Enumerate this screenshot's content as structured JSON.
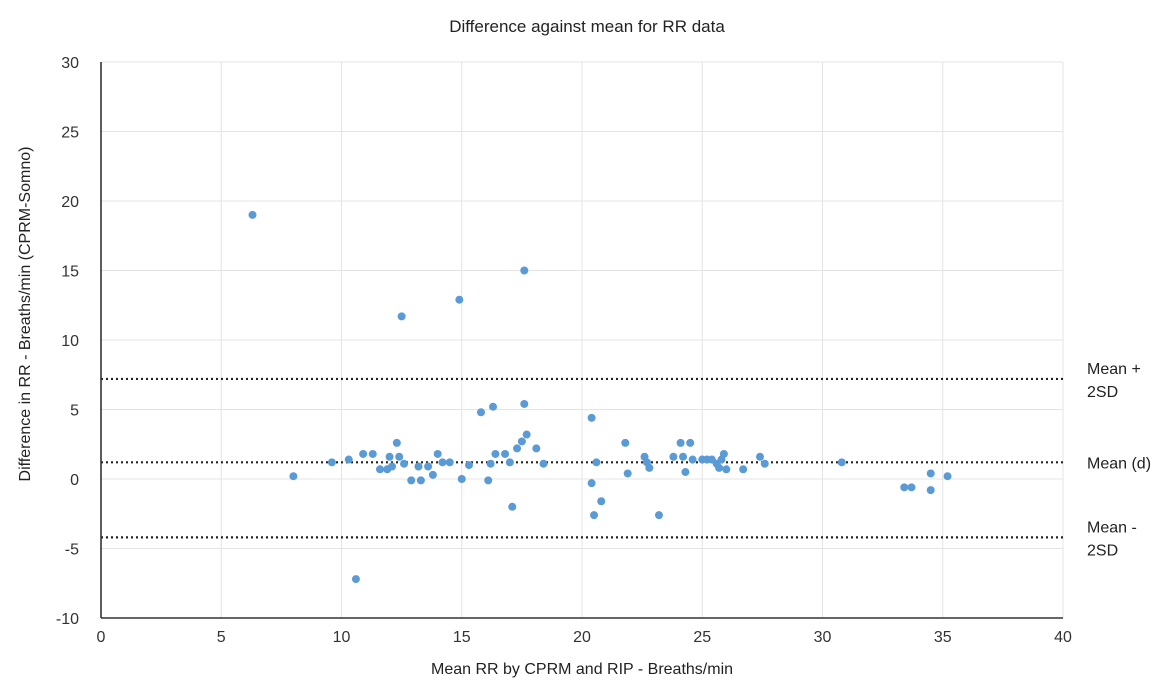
{
  "chart_data": {
    "type": "scatter",
    "title": "Difference against mean for RR data",
    "xlabel": "Mean RR by CPRM and RIP - Breaths/min",
    "ylabel": "Difference in RR - Breaths/min (CPRM-Somno)",
    "xlim": [
      0,
      40
    ],
    "ylim": [
      -10,
      30
    ],
    "xticks": [
      "0",
      "5",
      "10",
      "15",
      "20",
      "25",
      "30",
      "35",
      "40"
    ],
    "yticks": [
      "30",
      "25",
      "20",
      "15",
      "10",
      "5",
      "0",
      "-5",
      "-10"
    ],
    "grid": true,
    "color": "#5b9bd5",
    "reference_lines": [
      {
        "label_lines": [
          "Mean +",
          "2SD"
        ],
        "y": 7.2
      },
      {
        "label_lines": [
          "Mean (d)"
        ],
        "y": 1.2
      },
      {
        "label_lines": [
          "Mean -",
          "2SD"
        ],
        "y": -4.2
      }
    ],
    "points": [
      {
        "x": 6.3,
        "y": 19.0
      },
      {
        "x": 12.5,
        "y": 11.7
      },
      {
        "x": 14.9,
        "y": 12.9
      },
      {
        "x": 17.6,
        "y": 15.0
      },
      {
        "x": 8.0,
        "y": 0.2
      },
      {
        "x": 9.6,
        "y": 1.2
      },
      {
        "x": 10.3,
        "y": 1.4
      },
      {
        "x": 10.6,
        "y": -7.2
      },
      {
        "x": 10.9,
        "y": 1.8
      },
      {
        "x": 11.3,
        "y": 1.8
      },
      {
        "x": 11.6,
        "y": 0.7
      },
      {
        "x": 11.9,
        "y": 0.7
      },
      {
        "x": 12.0,
        "y": 1.6
      },
      {
        "x": 12.1,
        "y": 0.9
      },
      {
        "x": 12.3,
        "y": 2.6
      },
      {
        "x": 12.4,
        "y": 1.6
      },
      {
        "x": 12.6,
        "y": 1.1
      },
      {
        "x": 12.9,
        "y": -0.1
      },
      {
        "x": 13.2,
        "y": 0.9
      },
      {
        "x": 13.3,
        "y": -0.1
      },
      {
        "x": 13.6,
        "y": 0.9
      },
      {
        "x": 13.8,
        "y": 0.3
      },
      {
        "x": 14.0,
        "y": 1.8
      },
      {
        "x": 14.2,
        "y": 1.2
      },
      {
        "x": 14.5,
        "y": 1.2
      },
      {
        "x": 15.0,
        "y": 0.0
      },
      {
        "x": 15.3,
        "y": 1.0
      },
      {
        "x": 15.8,
        "y": 4.8
      },
      {
        "x": 16.1,
        "y": -0.1
      },
      {
        "x": 16.2,
        "y": 1.1
      },
      {
        "x": 16.3,
        "y": 5.2
      },
      {
        "x": 16.4,
        "y": 1.8
      },
      {
        "x": 16.8,
        "y": 1.8
      },
      {
        "x": 17.0,
        "y": 1.2
      },
      {
        "x": 17.1,
        "y": -2.0
      },
      {
        "x": 17.3,
        "y": 2.2
      },
      {
        "x": 17.5,
        "y": 2.7
      },
      {
        "x": 17.6,
        "y": 5.4
      },
      {
        "x": 17.7,
        "y": 3.2
      },
      {
        "x": 18.1,
        "y": 2.2
      },
      {
        "x": 18.4,
        "y": 1.1
      },
      {
        "x": 20.4,
        "y": 4.4
      },
      {
        "x": 20.4,
        "y": -0.3
      },
      {
        "x": 20.5,
        "y": -2.6
      },
      {
        "x": 20.6,
        "y": 1.2
      },
      {
        "x": 20.8,
        "y": -1.6
      },
      {
        "x": 21.8,
        "y": 2.6
      },
      {
        "x": 21.9,
        "y": 0.4
      },
      {
        "x": 22.6,
        "y": 1.6
      },
      {
        "x": 22.7,
        "y": 1.2
      },
      {
        "x": 22.8,
        "y": 0.8
      },
      {
        "x": 23.2,
        "y": -2.6
      },
      {
        "x": 23.8,
        "y": 1.6
      },
      {
        "x": 24.1,
        "y": 2.6
      },
      {
        "x": 24.2,
        "y": 1.6
      },
      {
        "x": 24.3,
        "y": 0.5
      },
      {
        "x": 24.5,
        "y": 2.6
      },
      {
        "x": 24.6,
        "y": 1.4
      },
      {
        "x": 25.0,
        "y": 1.4
      },
      {
        "x": 25.2,
        "y": 1.4
      },
      {
        "x": 25.4,
        "y": 1.4
      },
      {
        "x": 25.6,
        "y": 1.1
      },
      {
        "x": 25.7,
        "y": 0.8
      },
      {
        "x": 25.8,
        "y": 1.4
      },
      {
        "x": 25.9,
        "y": 1.8
      },
      {
        "x": 26.0,
        "y": 0.7
      },
      {
        "x": 26.7,
        "y": 0.7
      },
      {
        "x": 27.4,
        "y": 1.6
      },
      {
        "x": 27.6,
        "y": 1.1
      },
      {
        "x": 30.8,
        "y": 1.2
      },
      {
        "x": 33.4,
        "y": -0.6
      },
      {
        "x": 33.7,
        "y": -0.6
      },
      {
        "x": 34.5,
        "y": 0.4
      },
      {
        "x": 34.5,
        "y": -0.8
      },
      {
        "x": 35.2,
        "y": 0.2
      }
    ]
  }
}
